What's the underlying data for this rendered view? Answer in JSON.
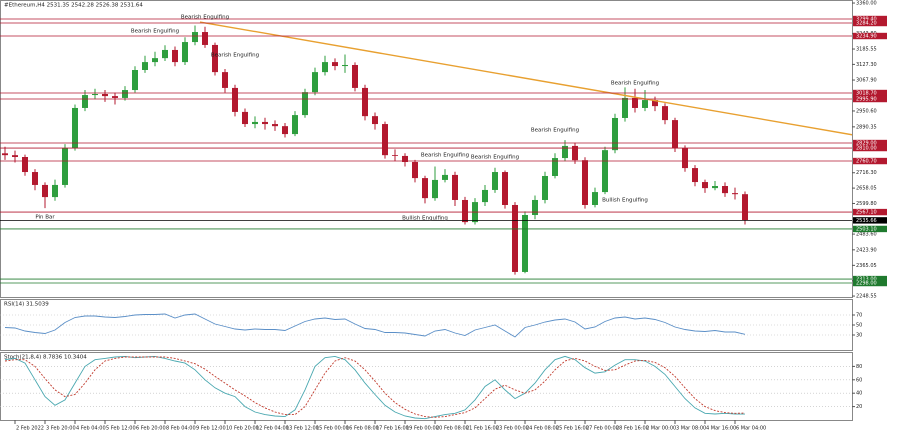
{
  "chart_data": [
    {
      "type": "candlestick",
      "title": "#Ethereum,H4  2531.35 2542.28 2526.38 2531.64",
      "xlim": [
        -0.5,
        84.7
      ],
      "ylim": [
        2245,
        3371.5
      ],
      "xticks": [
        {
          "value": 1,
          "label": "2 Feb 2022"
        },
        {
          "value": 4,
          "label": "3 Feb 20:00"
        },
        {
          "value": 7,
          "label": "4 Feb 04:00"
        },
        {
          "value": 10,
          "label": "5 Feb 12:00"
        },
        {
          "value": 13,
          "label": "6 Feb 20:00"
        },
        {
          "value": 16,
          "label": "8 Feb 04:00"
        },
        {
          "value": 19,
          "label": "9 Feb 12:00"
        },
        {
          "value": 22,
          "label": "10 Feb 20:00"
        },
        {
          "value": 25,
          "label": "12 Feb 04:00"
        },
        {
          "value": 28,
          "label": "13 Feb 12:00"
        },
        {
          "value": 31,
          "label": "15 Feb 00:00"
        },
        {
          "value": 34,
          "label": "16 Feb 08:00"
        },
        {
          "value": 37,
          "label": "17 Feb 16:00"
        },
        {
          "value": 40,
          "label": "19 Feb 00:00"
        },
        {
          "value": 43,
          "label": "20 Feb 08:00"
        },
        {
          "value": 46,
          "label": "21 Feb 16:00"
        },
        {
          "value": 49,
          "label": "23 Feb 00:00"
        },
        {
          "value": 52,
          "label": "24 Feb 08:00"
        },
        {
          "value": 55,
          "label": "25 Feb 16:00"
        },
        {
          "value": 58,
          "label": "27 Feb 00:00"
        },
        {
          "value": 61,
          "label": "28 Feb 16:00"
        },
        {
          "value": 64,
          "label": "2 Mar 00:00"
        },
        {
          "value": 67,
          "label": "3 Mar 08:00"
        },
        {
          "value": 70,
          "label": "4 Mar 16:00"
        },
        {
          "value": 73,
          "label": "6 Mar 04:00"
        }
      ],
      "yticks": [
        {
          "value": 3360,
          "label": "3360.00"
        },
        {
          "value": 3243.8,
          "label": "3243.80"
        },
        {
          "value": 3185.55,
          "label": "3185.55"
        },
        {
          "value": 3127.3,
          "label": "3127.30"
        },
        {
          "value": 3067.9,
          "label": "3067.90"
        },
        {
          "value": 2950.6,
          "label": "2950.60"
        },
        {
          "value": 2890.35,
          "label": "2890.35"
        },
        {
          "value": 2716.3,
          "label": "2716.30"
        },
        {
          "value": 2658.05,
          "label": "2658.05"
        },
        {
          "value": 2599.8,
          "label": "2599.80"
        },
        {
          "value": 2483.6,
          "label": "2483.60"
        },
        {
          "value": 2423.9,
          "label": "2423.90"
        },
        {
          "value": 2365.05,
          "label": "2365.05"
        },
        {
          "value": 2306.8,
          "label": "2306.80"
        },
        {
          "value": 2248.55,
          "label": "2248.55"
        }
      ],
      "open": [
        2790,
        2783,
        2776,
        2719,
        2670,
        2624,
        2670,
        2810,
        2962,
        3011,
        3015,
        3007,
        3000,
        3030,
        3106,
        3136,
        3151,
        3182,
        3136,
        3212,
        3250,
        3201,
        3098,
        3038,
        2947,
        2901,
        2909,
        2901,
        2893,
        2863,
        2935,
        3022,
        3098,
        3136,
        3121,
        3125,
        3038,
        2931,
        2901,
        2783,
        2780,
        2757,
        2696,
        2620,
        2689,
        2708,
        2613,
        2529,
        2605,
        2651,
        2719,
        2594,
        2340,
        2556,
        2613,
        2704,
        2772,
        2818,
        2764,
        2594,
        2643,
        2802,
        2924,
        3000,
        2962,
        2992,
        2969,
        2916,
        2810,
        2734,
        2681,
        2658,
        2666,
        2639,
        2635
      ],
      "high": [
        2815,
        2800,
        2785,
        2730,
        2680,
        2690,
        2825,
        2975,
        3030,
        3035,
        3030,
        3020,
        3045,
        3120,
        3160,
        3175,
        3200,
        3195,
        3230,
        3275,
        3270,
        3210,
        3110,
        3050,
        2960,
        2930,
        2925,
        2915,
        2905,
        2950,
        3035,
        3115,
        3160,
        3150,
        3165,
        3135,
        3050,
        2945,
        2910,
        2805,
        2790,
        2765,
        2705,
        2740,
        2730,
        2720,
        2625,
        2620,
        2670,
        2735,
        2725,
        2605,
        2570,
        2630,
        2720,
        2790,
        2840,
        2830,
        2775,
        2660,
        2815,
        2940,
        3040,
        3035,
        3030,
        3005,
        2980,
        2925,
        2820,
        2745,
        2690,
        2685,
        2680,
        2660,
        2645
      ],
      "low": [
        2765,
        2755,
        2705,
        2650,
        2582,
        2610,
        2660,
        2800,
        2950,
        2995,
        2985,
        2975,
        2990,
        3020,
        3095,
        3120,
        3140,
        3120,
        3125,
        3200,
        3190,
        3085,
        3020,
        2930,
        2890,
        2885,
        2880,
        2875,
        2850,
        2855,
        2925,
        3010,
        3085,
        3105,
        3095,
        3025,
        2915,
        2880,
        2770,
        2760,
        2740,
        2680,
        2600,
        2610,
        2680,
        2590,
        2520,
        2520,
        2590,
        2640,
        2580,
        2330,
        2335,
        2540,
        2600,
        2695,
        2760,
        2750,
        2580,
        2585,
        2635,
        2790,
        2910,
        2945,
        2950,
        2950,
        2900,
        2795,
        2720,
        2665,
        2640,
        2650,
        2625,
        2615,
        2520
      ],
      "close": [
        2783,
        2776,
        2719,
        2670,
        2624,
        2670,
        2810,
        2962,
        3011,
        3015,
        3007,
        3000,
        3030,
        3106,
        3136,
        3151,
        3182,
        3136,
        3212,
        3250,
        3201,
        3098,
        3038,
        2947,
        2901,
        2909,
        2901,
        2893,
        2863,
        2935,
        3022,
        3098,
        3136,
        3121,
        3125,
        3038,
        2931,
        2901,
        2783,
        2780,
        2757,
        2696,
        2620,
        2689,
        2708,
        2613,
        2529,
        2605,
        2651,
        2719,
        2594,
        2340,
        2556,
        2613,
        2704,
        2772,
        2818,
        2764,
        2594,
        2643,
        2802,
        2924,
        3000,
        2962,
        2992,
        2969,
        2916,
        2810,
        2734,
        2681,
        2658,
        2666,
        2639,
        2635,
        2536
      ],
      "up_color": "#2e9e3e",
      "down_color": "#b3192f",
      "levels": [
        {
          "value": 3299.4,
          "label": "3299.40",
          "color": "#b3192f"
        },
        {
          "value": 3284.2,
          "label": "3284.20",
          "color": "#b3192f"
        },
        {
          "value": 3234.9,
          "label": "3234.90",
          "color": "#b3192f"
        },
        {
          "value": 3018.7,
          "label": "3018.70",
          "color": "#b3192f"
        },
        {
          "value": 2995.9,
          "label": "2995.90",
          "color": "#b3192f"
        },
        {
          "value": 2829,
          "label": "2829.00",
          "color": "#b3192f"
        },
        {
          "value": 2810,
          "label": "2810.00",
          "color": "#b3192f"
        },
        {
          "value": 2760.7,
          "label": "2760.70",
          "color": "#b3192f"
        },
        {
          "value": 2567.1,
          "label": "2567.10",
          "color": "#b3192f"
        },
        {
          "value": 2535.66,
          "label": "2535.66",
          "color": "#000000"
        },
        {
          "value": 2503.1,
          "label": "2503.10",
          "color": "#1f7a2e"
        },
        {
          "value": 2313,
          "label": "2313.00",
          "color": "#1f7a2e"
        },
        {
          "value": 2298,
          "label": "2298.00",
          "color": "#1f7a2e"
        }
      ],
      "trendline": {
        "color": "#e8a030",
        "start": {
          "index": 19.5,
          "price": 3288
        },
        "end": {
          "index": 89.5,
          "price": 2829
        }
      },
      "annotations": [
        {
          "text": "Pin Bar",
          "index": 4,
          "price": 2548
        },
        {
          "text": "Bearish Engulfing",
          "index": 15,
          "price": 3254
        },
        {
          "text": "Bearish Engulfing",
          "index": 20,
          "price": 3307
        },
        {
          "text": "Bearish Engulfing",
          "index": 23,
          "price": 3163
        },
        {
          "text": "Bearish Engulfing",
          "index": 44,
          "price": 2783
        },
        {
          "text": "Bearish Engulfing",
          "index": 49,
          "price": 2776
        },
        {
          "text": "Bearish Engulfing",
          "index": 55,
          "price": 2878
        },
        {
          "text": "Bearish Engulfing",
          "index": 63,
          "price": 3057
        },
        {
          "text": "Bullish Engulfing",
          "index": 42,
          "price": 2544
        },
        {
          "text": "Bullish Engulfing",
          "index": 62,
          "price": 2613
        }
      ]
    },
    {
      "type": "line",
      "title": "RSI(14) 31.5039",
      "ylim": [
        0,
        100
      ],
      "yticks": [
        70,
        50,
        30
      ],
      "color": "#5b8fc7",
      "values": [
        45,
        44,
        38,
        35,
        33,
        40,
        55,
        65,
        68,
        68,
        66,
        65,
        67,
        70,
        71,
        71,
        72,
        64,
        70,
        72,
        62,
        52,
        47,
        42,
        40,
        42,
        41,
        41,
        39,
        48,
        57,
        62,
        64,
        61,
        62,
        52,
        43,
        41,
        35,
        35,
        34,
        31,
        28,
        38,
        41,
        34,
        29,
        40,
        45,
        50,
        38,
        26,
        45,
        50,
        56,
        60,
        62,
        56,
        42,
        46,
        57,
        64,
        66,
        62,
        64,
        61,
        55,
        46,
        41,
        38,
        37,
        39,
        36,
        36,
        31.5
      ]
    },
    {
      "type": "line",
      "title": "Stoch(21,8,4) 8.7836 10.3404",
      "ylim": [
        0,
        100
      ],
      "yticks": [
        80,
        60,
        40,
        20
      ],
      "series": [
        {
          "color": "#4aa8b0",
          "dash": false,
          "values": [
            90,
            92,
            85,
            60,
            35,
            22,
            30,
            55,
            80,
            90,
            92,
            94,
            95,
            93,
            94,
            95,
            92,
            88,
            85,
            75,
            60,
            48,
            40,
            35,
            20,
            12,
            8,
            6,
            5,
            15,
            45,
            80,
            93,
            95,
            90,
            75,
            55,
            38,
            22,
            12,
            6,
            3,
            2,
            5,
            8,
            10,
            15,
            30,
            50,
            60,
            45,
            32,
            40,
            55,
            75,
            90,
            95,
            90,
            78,
            70,
            72,
            82,
            90,
            90,
            88,
            80,
            68,
            50,
            32,
            18,
            10,
            9,
            10,
            9,
            8.8
          ]
        },
        {
          "color": "#c0392b",
          "dash": true,
          "values": [
            88,
            90,
            90,
            80,
            62,
            45,
            35,
            38,
            55,
            75,
            88,
            92,
            94,
            94,
            94,
            94,
            94,
            92,
            88,
            84,
            76,
            65,
            55,
            45,
            36,
            26,
            18,
            12,
            8,
            8,
            20,
            45,
            70,
            88,
            93,
            88,
            75,
            58,
            40,
            26,
            16,
            9,
            5,
            4,
            5,
            8,
            11,
            18,
            32,
            46,
            52,
            45,
            40,
            45,
            58,
            75,
            88,
            92,
            88,
            80,
            74,
            75,
            82,
            88,
            89,
            86,
            78,
            65,
            48,
            32,
            20,
            14,
            11,
            10,
            10.3
          ]
        }
      ]
    }
  ]
}
